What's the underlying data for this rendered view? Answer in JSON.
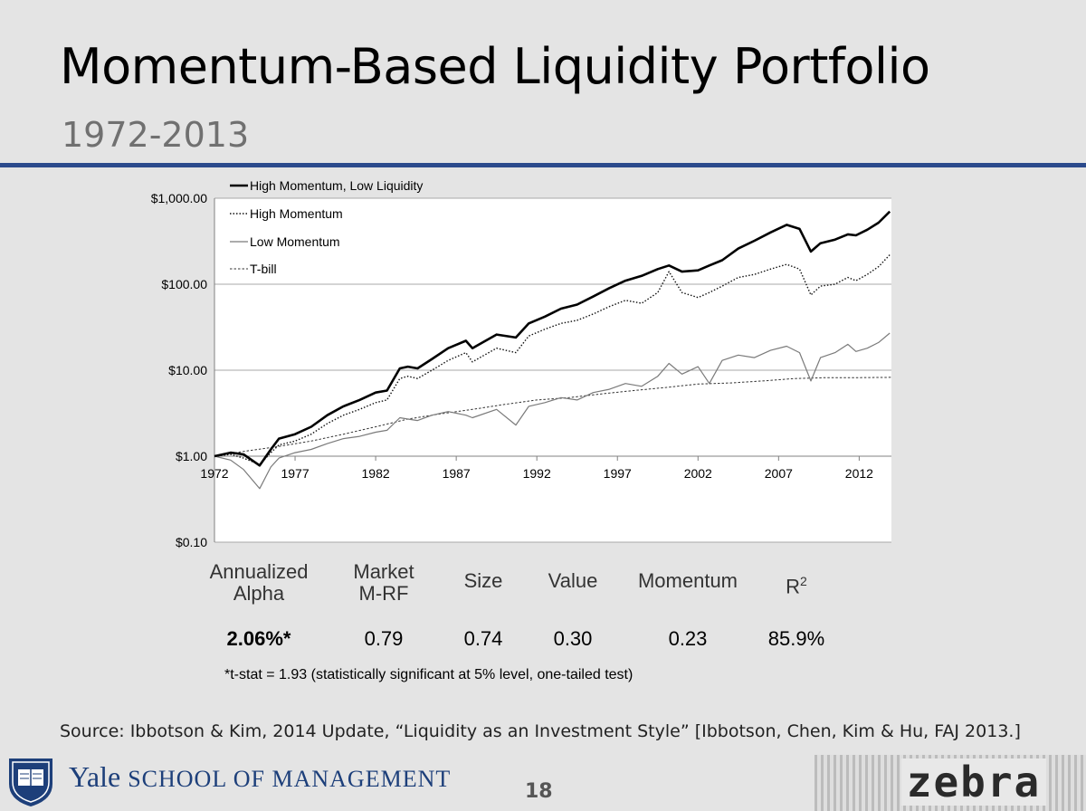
{
  "slide": {
    "title": "Momentum-Based Liquidity Portfolio",
    "subtitle": "1972-2013",
    "footnote": "*t-stat = 1.93 (statistically significant at 5% level, one-tailed test)",
    "source": "Source: Ibbotson & Kim, 2014 Update, “Liquidity as an Investment Style” [Ibbotson, Chen, Kim & Hu, FAJ 2013.]",
    "page_number": "18",
    "footer_brand_name": "Yale",
    "footer_brand_rest": "SCHOOL OF MANAGEMENT",
    "sponsor_logo": "zebra"
  },
  "colors": {
    "rule": "#2b4a8c",
    "high_mom_low_liq": "#000000",
    "high_mom": "#111111",
    "low_mom": "#7a7a7a",
    "tbill": "#333333"
  },
  "chart_data": {
    "type": "line",
    "y_scale": "log",
    "ylim": [
      0.1,
      1000
    ],
    "xlim": [
      1972,
      2014
    ],
    "y_ticks": [
      1000,
      100,
      10,
      1,
      0.1
    ],
    "y_tick_labels": [
      "$1,000.00",
      "$100.00",
      "$10.00",
      "$1.00",
      "$0.10"
    ],
    "x_ticks": [
      1972,
      1977,
      1982,
      1987,
      1992,
      1997,
      2002,
      2007,
      2012
    ],
    "x_axis_crosses_at": 1,
    "legend_position": "top-left",
    "series": [
      {
        "name": "High Momentum, Low Liquidity",
        "style": "thick-solid",
        "x": [
          1972,
          1973,
          1973.8,
          1974.8,
          1975.5,
          1976,
          1977,
          1978,
          1979,
          1980,
          1981,
          1982,
          1982.7,
          1983.5,
          1984,
          1984.6,
          1985.5,
          1986.5,
          1987.6,
          1988,
          1989.5,
          1990.7,
          1991.5,
          1992.5,
          1993.5,
          1994.5,
          1995.5,
          1996.5,
          1997.5,
          1998.5,
          1999.5,
          2000.2,
          2001,
          2002,
          2002.7,
          2003.5,
          2004.5,
          2005.5,
          2006.5,
          2007.5,
          2008.3,
          2009,
          2009.6,
          2010.5,
          2011.3,
          2011.8,
          2012.5,
          2013.2,
          2013.9
        ],
        "y": [
          1.0,
          1.1,
          1.05,
          0.78,
          1.2,
          1.6,
          1.8,
          2.2,
          3.0,
          3.8,
          4.5,
          5.5,
          5.8,
          10.5,
          11.0,
          10.5,
          13.5,
          18.0,
          22.0,
          18.0,
          26.0,
          24.0,
          35.0,
          42.0,
          52.0,
          58.0,
          72.0,
          90.0,
          110.0,
          125.0,
          150.0,
          165.0,
          140.0,
          145.0,
          165.0,
          190.0,
          260.0,
          320.0,
          400.0,
          490.0,
          440.0,
          240.0,
          300.0,
          330.0,
          380.0,
          370.0,
          430.0,
          520.0,
          700.0
        ]
      },
      {
        "name": "High Momentum",
        "style": "dotted",
        "x": [
          1972,
          1973,
          1973.8,
          1974.8,
          1975.5,
          1976,
          1977,
          1978,
          1979,
          1980,
          1981,
          1982,
          1982.7,
          1983.5,
          1984,
          1984.6,
          1985.5,
          1986.5,
          1987.6,
          1988,
          1989.5,
          1990.7,
          1991.5,
          1992.5,
          1993.5,
          1994.5,
          1995.5,
          1996.5,
          1997.5,
          1998.5,
          1999.5,
          2000.2,
          2001,
          2002,
          2002.7,
          2003.5,
          2004.5,
          2005.5,
          2006.5,
          2007.5,
          2008.3,
          2009,
          2009.6,
          2010.5,
          2011.3,
          2011.8,
          2012.5,
          2013.2,
          2013.9
        ],
        "y": [
          1.0,
          1.05,
          0.95,
          0.8,
          1.1,
          1.35,
          1.5,
          1.8,
          2.4,
          3.0,
          3.5,
          4.2,
          4.5,
          8.0,
          8.5,
          8.0,
          10.0,
          13.0,
          16.0,
          12.5,
          18.0,
          16.0,
          25.0,
          30.0,
          35.0,
          38.0,
          45.0,
          55.0,
          65.0,
          60.0,
          80.0,
          140.0,
          80.0,
          70.0,
          80.0,
          95.0,
          120.0,
          130.0,
          150.0,
          170.0,
          150.0,
          75.0,
          95.0,
          100.0,
          120.0,
          110.0,
          130.0,
          160.0,
          220.0
        ]
      },
      {
        "name": "Low Momentum",
        "style": "thin-solid",
        "x": [
          1972,
          1973,
          1973.8,
          1974.8,
          1975.5,
          1976,
          1977,
          1978,
          1979,
          1980,
          1981,
          1982,
          1982.7,
          1983.5,
          1984,
          1984.6,
          1985.5,
          1986.5,
          1987.6,
          1988,
          1989.5,
          1990.7,
          1991.5,
          1992.5,
          1993.5,
          1994.5,
          1995.5,
          1996.5,
          1997.5,
          1998.5,
          1999.5,
          2000.2,
          2001,
          2002,
          2002.7,
          2003.5,
          2004.5,
          2005.5,
          2006.5,
          2007.5,
          2008.3,
          2009,
          2009.6,
          2010.5,
          2011.3,
          2011.8,
          2012.5,
          2013.2,
          2013.9
        ],
        "y": [
          1.0,
          0.9,
          0.7,
          0.42,
          0.75,
          0.95,
          1.1,
          1.2,
          1.4,
          1.6,
          1.7,
          1.9,
          2.0,
          2.8,
          2.7,
          2.6,
          3.0,
          3.3,
          3.0,
          2.8,
          3.5,
          2.3,
          3.8,
          4.2,
          4.8,
          4.5,
          5.5,
          6.0,
          7.0,
          6.5,
          8.5,
          12.0,
          9.0,
          11.0,
          7.0,
          13.0,
          15.0,
          14.0,
          17.0,
          19.0,
          16.0,
          7.5,
          14.0,
          16.0,
          20.0,
          16.5,
          18.0,
          21.0,
          27.0
        ]
      },
      {
        "name": "T-bill",
        "style": "thin-dashed",
        "x": [
          1972,
          1974,
          1976,
          1978,
          1980,
          1982,
          1984,
          1986,
          1988,
          1990,
          1992,
          1994,
          1996,
          1998,
          2000,
          2002,
          2004,
          2006,
          2008,
          2010,
          2012,
          2014
        ],
        "y": [
          1.0,
          1.15,
          1.3,
          1.5,
          1.8,
          2.2,
          2.7,
          3.1,
          3.5,
          4.0,
          4.5,
          4.8,
          5.3,
          5.8,
          6.3,
          6.9,
          7.1,
          7.5,
          8.0,
          8.2,
          8.2,
          8.25
        ]
      }
    ]
  },
  "stats_table": {
    "headers": [
      [
        "Annualized",
        "Alpha"
      ],
      [
        "Market",
        "M-RF"
      ],
      [
        "Size",
        ""
      ],
      [
        "Value",
        ""
      ],
      [
        "Momentum",
        ""
      ],
      [
        "R",
        "2"
      ]
    ],
    "values": [
      "2.06%*",
      "0.79",
      "0.74",
      "0.30",
      "0.23",
      "85.9%"
    ]
  }
}
